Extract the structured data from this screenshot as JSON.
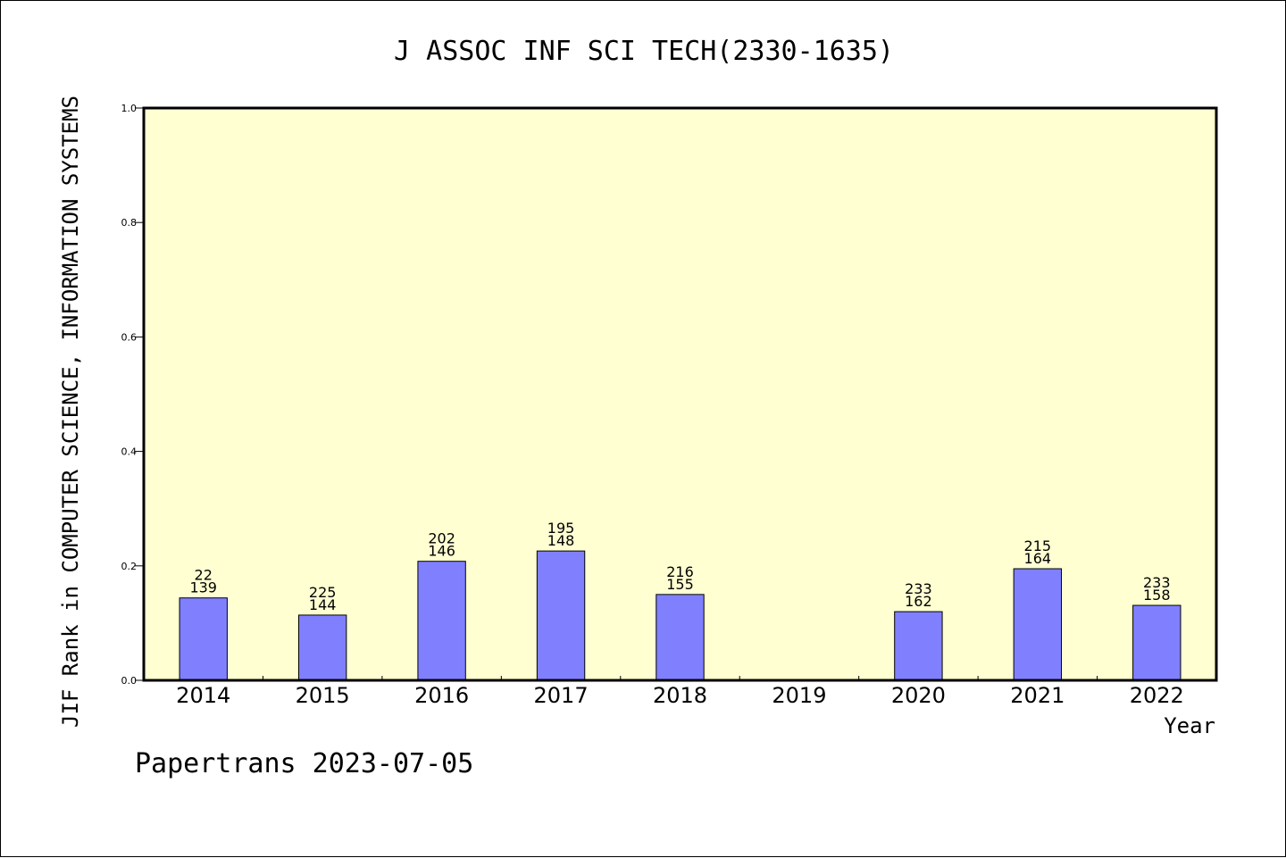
{
  "chart_data": {
    "type": "bar",
    "title": "J ASSOC INF SCI TECH(2330-1635)",
    "xlabel": "Year",
    "ylabel": "JIF Rank in COMPUTER SCIENCE, INFORMATION SYSTEMS",
    "categories": [
      "2014",
      "2015",
      "2016",
      "2017",
      "2018",
      "2019",
      "2020",
      "2021",
      "2022"
    ],
    "values": [
      0.144,
      0.114,
      0.208,
      0.226,
      0.15,
      null,
      0.12,
      0.195,
      0.131
    ],
    "rank_totals": [
      "22",
      "225",
      "202",
      "195",
      "216",
      "",
      "233",
      "215",
      "233"
    ],
    "rank_positions": [
      "139",
      "144",
      "146",
      "148",
      "155",
      "",
      "162",
      "164",
      "158"
    ],
    "ylim": [
      0,
      1.0
    ],
    "yticks": [
      "0.0",
      "0.2",
      "0.4",
      "0.6",
      "0.8",
      "1.0"
    ],
    "grid": false,
    "colors": {
      "plot_background": "#ffffd2",
      "bar_fill": "#8080ff",
      "bar_stroke": "#000000"
    }
  },
  "footer": {
    "credit": "Papertrans 2023-07-05"
  }
}
